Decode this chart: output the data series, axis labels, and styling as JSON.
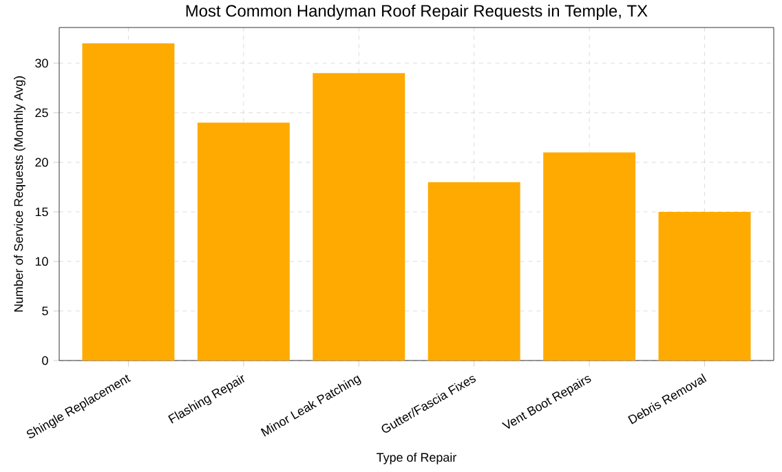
{
  "chart_data": {
    "type": "bar",
    "title": "Most Common Handyman Roof Repair Requests in Temple, TX",
    "xlabel": "Type of Repair",
    "ylabel": "Number of Service Requests (Monthly Avg)",
    "categories": [
      "Shingle Replacement",
      "Flashing Repair",
      "Minor Leak Patching",
      "Gutter/Fascia Fixes",
      "Vent Boot Repairs",
      "Debris Removal"
    ],
    "values": [
      32,
      24,
      29,
      18,
      21,
      15
    ],
    "color": "#ffaa00",
    "ylim": [
      0,
      33.6
    ],
    "yticks": [
      0,
      5,
      10,
      15,
      20,
      25,
      30
    ],
    "grid": true
  }
}
